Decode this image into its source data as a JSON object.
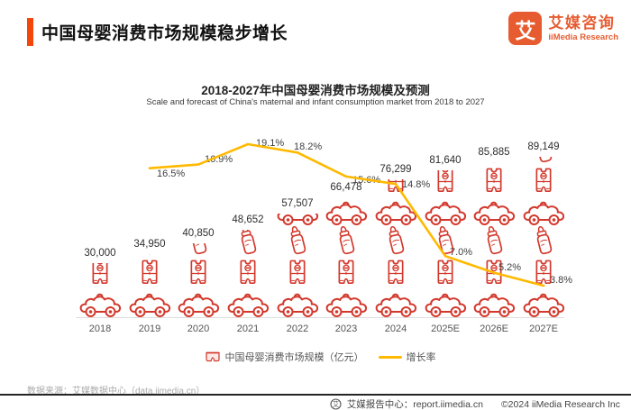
{
  "header": {
    "title": "中国母婴消费市场规模稳步增长"
  },
  "logo": {
    "glyph": "艾",
    "name_cn": "艾媒咨询",
    "name_en": "iiMedia Research"
  },
  "chart": {
    "title": "2018-2027年中国母婴消费市场规模及预测",
    "subtitle": "Scale and forecast of China's maternal and infant consumption market from 2018 to 2027",
    "legend": [
      {
        "label": "中国母婴消费市场规模（亿元）"
      },
      {
        "label": "增长率"
      }
    ]
  },
  "chart_data": {
    "type": "bar",
    "subtype": "pictorial-bar + line combo, icons of toy car / baby romper / baby bottle stacked",
    "categories": [
      "2018",
      "2019",
      "2020",
      "2021",
      "2022",
      "2023",
      "2024",
      "2025E",
      "2026E",
      "2027E"
    ],
    "series": [
      {
        "name": "中国母婴消费市场规模（亿元）",
        "type": "pictorial-bar",
        "values": [
          30000,
          34950,
          40850,
          48652,
          57507,
          66478,
          76299,
          81640,
          85885,
          89149
        ],
        "labels": [
          "30,000",
          "34,950",
          "40,850",
          "48,652",
          "57,507",
          "66,478",
          "76,299",
          "81,640",
          "85,885",
          "89,149"
        ],
        "unit": "亿元",
        "color": "#D3382C"
      },
      {
        "name": "增长率",
        "type": "line",
        "values": [
          null,
          16.5,
          16.9,
          19.1,
          18.2,
          15.6,
          14.8,
          7.0,
          5.2,
          3.8
        ],
        "labels": [
          "16.5%",
          "16.9%",
          "19.1%",
          "18.2%",
          "15.6%",
          "14.8%",
          "7.0%",
          "5.2%",
          "3.8%"
        ],
        "unit": "%",
        "color": "#FFB900"
      }
    ],
    "legend_position": "bottom",
    "grid": false,
    "y_axis_visible": false
  },
  "footer": {
    "source": "数据来源：艾媒数据中心（data.iimedia.cn）",
    "badge_glyph": "艾",
    "report_center": "艾媒报告中心：report.iimedia.cn",
    "copyright": "©2024 iiMedia Research Inc"
  },
  "colors": {
    "accent": "#F4470B",
    "icon_red": "#D3382C",
    "line_yellow": "#FFB900",
    "logo_orange": "#E65C30"
  }
}
